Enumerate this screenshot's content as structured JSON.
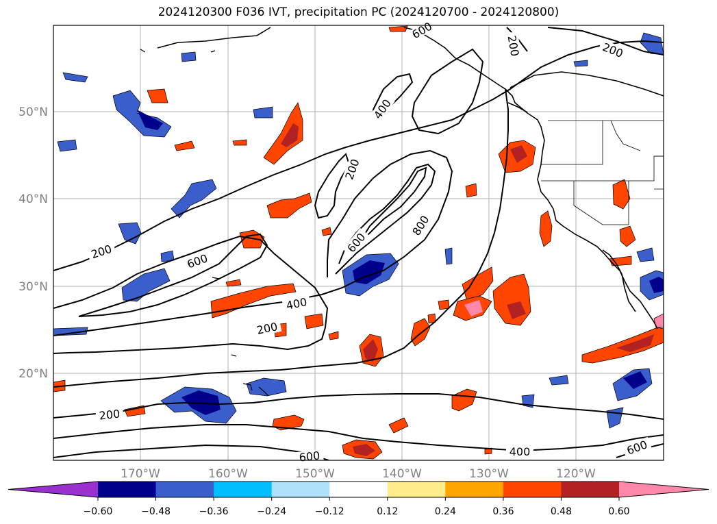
{
  "title": "2024120300 F036 IVT, precipitation PC (2024120700 - 2024120800)",
  "map": {
    "lon_ticks": [
      "170°W",
      "160°W",
      "150°W",
      "140°W",
      "130°W",
      "120°W"
    ],
    "lat_ticks": [
      "50°N",
      "40°N",
      "30°N",
      "20°N"
    ],
    "gridlines": true
  },
  "ivt_contour_labels": [
    "200",
    "200",
    "400",
    "200",
    "600",
    "800",
    "600",
    "200",
    "600",
    "400",
    "200",
    "200",
    "600",
    "400",
    "600"
  ],
  "colorbar": {
    "extend": "both",
    "colors": [
      "#9b30d0",
      "#00008b",
      "#3a5fcd",
      "#00bfff",
      "#afe1fb",
      "#ffffff",
      "#ffec8b",
      "#ffa500",
      "#ff4500",
      "#b22222",
      "#ff88aa"
    ],
    "labels": [
      "−0.60",
      "−0.48",
      "−0.36",
      "−0.24",
      "−0.12",
      "0.12",
      "0.24",
      "0.36",
      "0.48",
      "0.60"
    ]
  }
}
